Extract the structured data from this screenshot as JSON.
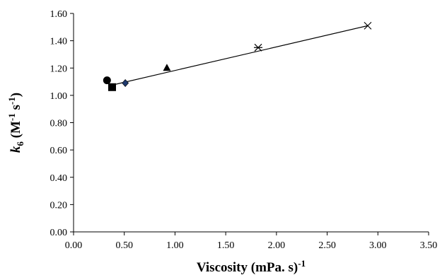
{
  "chart_data": {
    "type": "scatter",
    "title": "",
    "xlabel": {
      "main": "Viscosity (mPa. s)",
      "sup": "-1"
    },
    "ylabel": {
      "k": "k",
      "sub": "6",
      "open": " (M",
      "sup1": "-1",
      "mid": " s",
      "sup2": "-1",
      "close": ")"
    },
    "xlim": [
      0,
      3.5
    ],
    "ylim": [
      0,
      1.6
    ],
    "x_ticks": [
      "0.00",
      "0.50",
      "1.00",
      "1.50",
      "2.00",
      "2.50",
      "3.00",
      "3.50"
    ],
    "y_ticks": [
      "0.00",
      "0.20",
      "0.40",
      "0.60",
      "0.80",
      "1.00",
      "1.20",
      "1.40",
      "1.60"
    ],
    "grid": false,
    "legend": "none",
    "series": [
      {
        "marker": "circle",
        "color": "#000000",
        "x": [
          0.33
        ],
        "y": [
          1.11
        ]
      },
      {
        "marker": "square",
        "color": "#000000",
        "x": [
          0.38
        ],
        "y": [
          1.06
        ]
      },
      {
        "marker": "diamond",
        "color": "#1f3a6e",
        "x": [
          0.51
        ],
        "y": [
          1.09
        ]
      },
      {
        "marker": "triangle",
        "color": "#000000",
        "x": [
          0.92
        ],
        "y": [
          1.2
        ]
      },
      {
        "marker": "asterisk",
        "color": "#000000",
        "x": [
          1.82
        ],
        "y": [
          1.35
        ]
      },
      {
        "marker": "cross",
        "color": "#000000",
        "x": [
          2.9
        ],
        "y": [
          1.51
        ]
      }
    ],
    "trendline": {
      "x": [
        0.35,
        2.9
      ],
      "y": [
        1.07,
        1.51
      ]
    }
  }
}
